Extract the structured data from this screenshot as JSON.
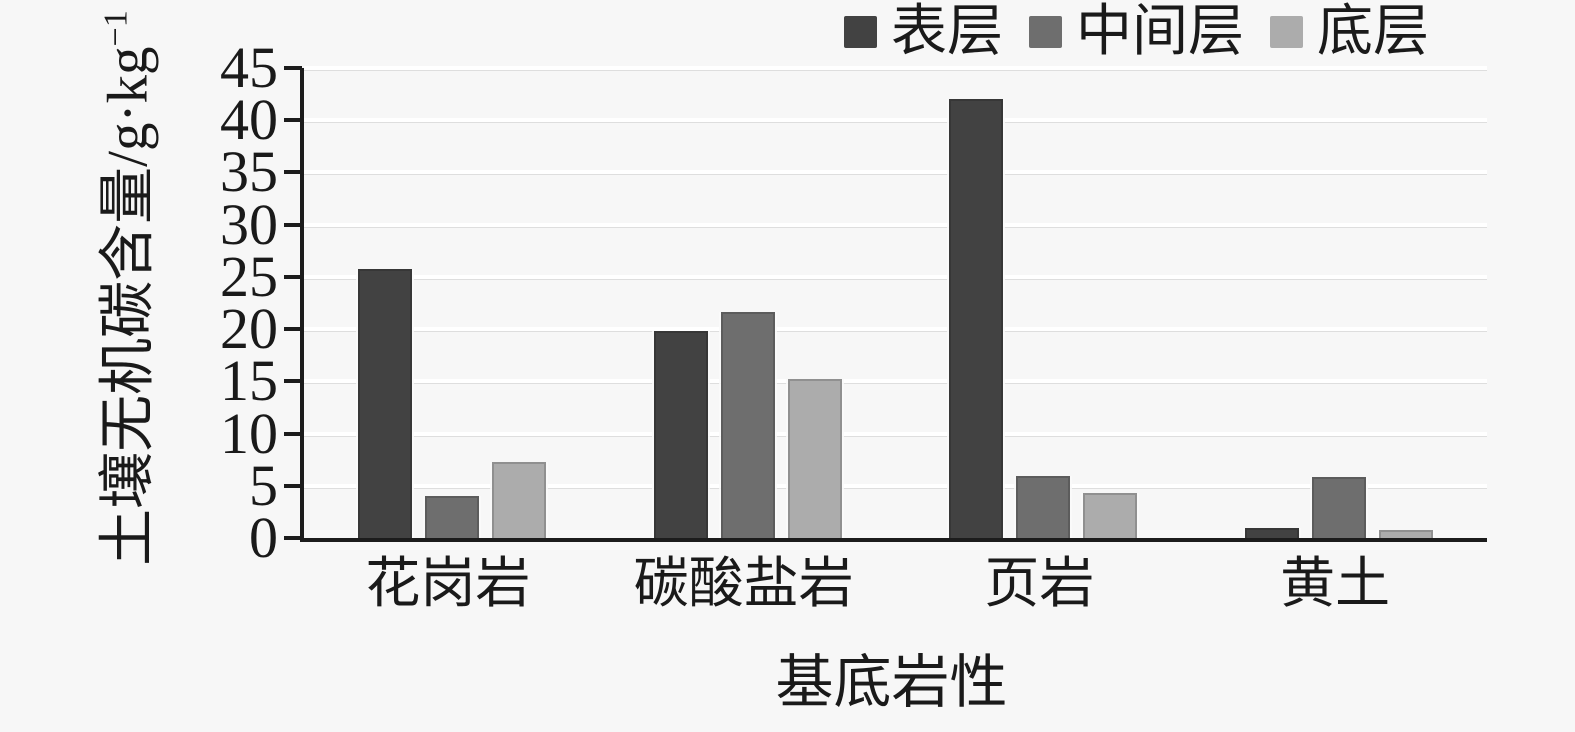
{
  "figure": {
    "background": "#f7f7f7",
    "axis_color": "#1c1c1c",
    "gridline_color": "#ffffff",
    "text_color": "#1a1a1a"
  },
  "chart_data": {
    "type": "bar",
    "title": "",
    "xlabel": "基底岩性",
    "ylabel": "土壤无机碳含量/g·kg⁻¹",
    "ylabel_main": "土壤无机碳含量/g·kg",
    "ylabel_superscript": "−1",
    "categories": [
      "花岗岩",
      "碳酸盐岩",
      "页岩",
      "黄土"
    ],
    "series": [
      {
        "name": "表层",
        "color": "#424242",
        "values": [
          25.8,
          19.8,
          42.0,
          1.0
        ]
      },
      {
        "name": "中间层",
        "color": "#6e6e6e",
        "values": [
          4.0,
          21.6,
          5.9,
          5.8
        ]
      },
      {
        "name": "底层",
        "color": "#acacac",
        "values": [
          7.3,
          15.2,
          4.3,
          0.8
        ]
      }
    ],
    "ylim": [
      0,
      45
    ],
    "ytick_step": 5,
    "yticks": [
      0,
      5,
      10,
      15,
      20,
      25,
      30,
      35,
      40,
      45
    ],
    "grid": true,
    "legend_position": "top-right"
  }
}
